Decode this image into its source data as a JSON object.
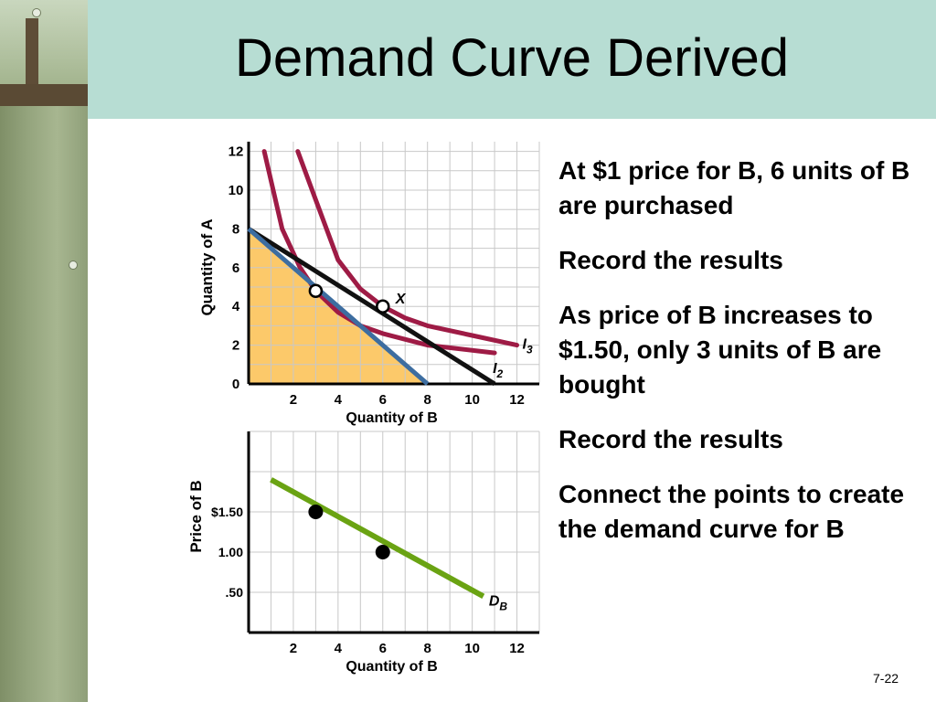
{
  "slide": {
    "title": "Demand Curve Derived",
    "page_number": "7-22"
  },
  "bullets": [
    "At $1 price for B, 6 units of B are purchased",
    "Record the results",
    "As price of B increases to $1.50, only 3 units of B are bought",
    "Record the results",
    "Connect the points to create the demand curve for B"
  ],
  "colors": {
    "header": "#b7ddd3",
    "budget_fill": "#fcc96a",
    "indifference_curve": "#9e1b45",
    "budget_line_1": "#111111",
    "budget_line_2": "#3d6da0",
    "demand_curve": "#6aa313"
  },
  "chart_data": [
    {
      "type": "line",
      "xlabel": "Quantity of B",
      "ylabel": "Quantity of A",
      "xlim": [
        0,
        13
      ],
      "ylim": [
        0,
        12.5
      ],
      "x_ticks": [
        "2",
        "4",
        "6",
        "8",
        "10",
        "12"
      ],
      "y_ticks": [
        "0",
        "2",
        "4",
        "6",
        "8",
        "10",
        "12"
      ],
      "grid": true,
      "filled_region": {
        "x": [
          0,
          8,
          0
        ],
        "y": [
          8,
          0,
          0
        ]
      },
      "series": [
        {
          "name": "I3",
          "label_main": "I",
          "label_sub": "3",
          "points": [
            [
              2.2,
              12
            ],
            [
              3,
              9.5
            ],
            [
              4,
              6.4
            ],
            [
              5,
              4.9
            ],
            [
              6,
              4.0
            ],
            [
              7,
              3.4
            ],
            [
              8,
              3.0
            ],
            [
              10,
              2.5
            ],
            [
              12,
              2.0
            ]
          ]
        },
        {
          "name": "I2",
          "label_main": "I",
          "label_sub": "2",
          "points": [
            [
              0.7,
              12
            ],
            [
              1.5,
              8
            ],
            [
              2.3,
              6
            ],
            [
              3,
              4.8
            ],
            [
              4,
              3.7
            ],
            [
              5,
              3.0
            ],
            [
              6,
              2.6
            ],
            [
              8,
              2.0
            ],
            [
              11,
              1.6
            ]
          ]
        },
        {
          "points": [
            [
              0,
              8
            ],
            [
              11,
              0
            ]
          ]
        },
        {
          "points": [
            [
              0,
              8
            ],
            [
              8,
              0
            ]
          ]
        }
      ],
      "points": [
        {
          "x": 3,
          "y": 4.8,
          "label": ""
        },
        {
          "x": 6,
          "y": 4.0,
          "label": "X"
        }
      ]
    },
    {
      "type": "line",
      "xlabel": "Quantity of B",
      "ylabel": "Price of B",
      "xlim": [
        0,
        13
      ],
      "ylim": [
        0,
        2.5
      ],
      "x_ticks": [
        "2",
        "4",
        "6",
        "8",
        "10",
        "12"
      ],
      "y_ticks": [
        {
          "label": "$1.50",
          "value": 1.5
        },
        {
          "label": "1.00",
          "value": 1.0
        },
        {
          "label": ".50",
          "value": 0.5
        }
      ],
      "grid": true,
      "series": [
        {
          "name": "DB",
          "label_main": "D",
          "label_sub": "B",
          "points": [
            [
              1,
              1.9
            ],
            [
              10.5,
              0.45
            ]
          ]
        }
      ],
      "points": [
        {
          "x": 3,
          "y": 1.5
        },
        {
          "x": 6,
          "y": 1.0
        }
      ]
    }
  ]
}
